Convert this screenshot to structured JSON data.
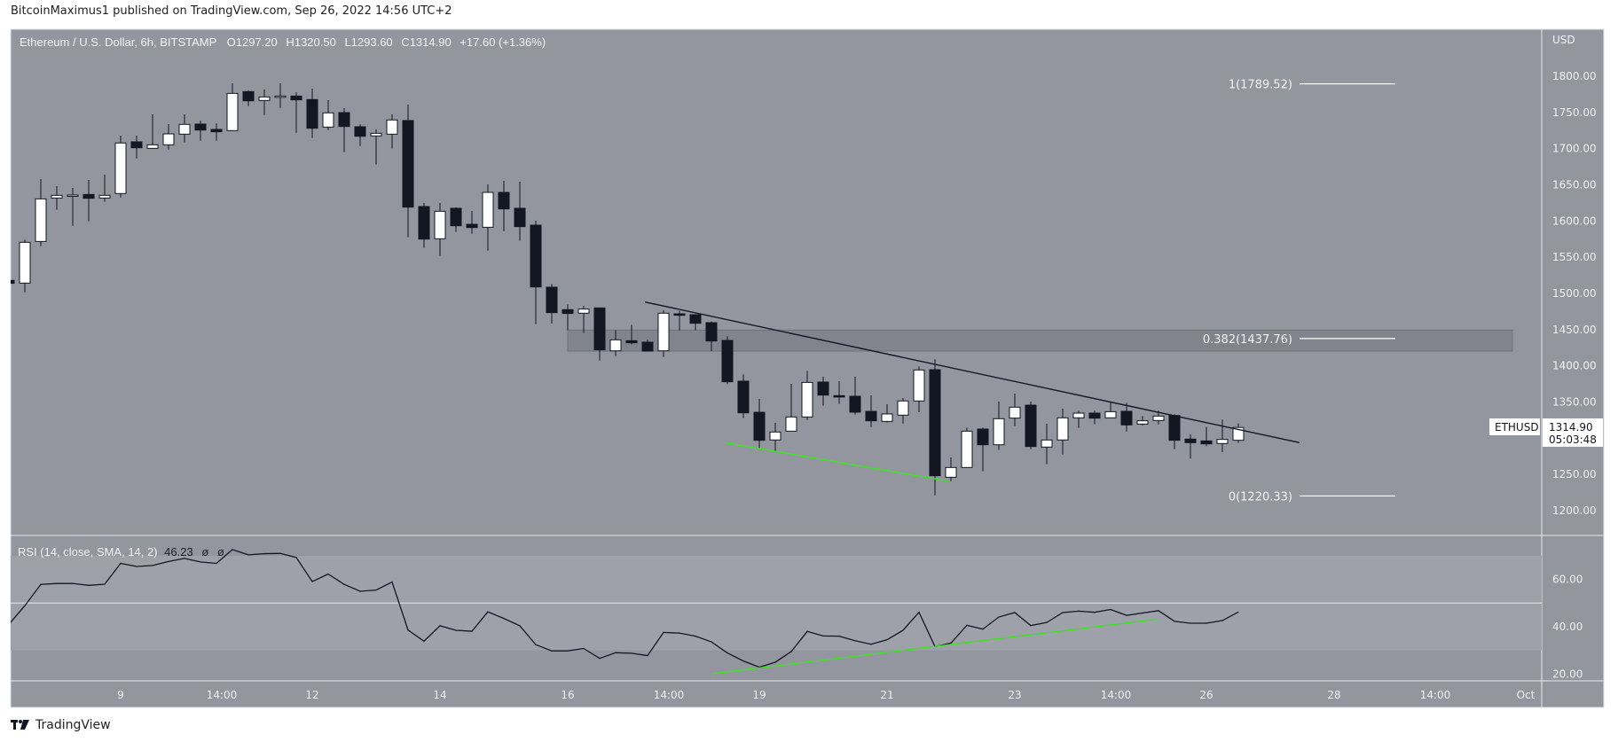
{
  "publish_note": "BitcoinMaximus1 published on TradingView.com, Sep 26, 2022 14:56 UTC+2",
  "legend": {
    "symbol": "Ethereum / U.S. Dollar, 6h, BITSTAMP",
    "o_label": "O",
    "o": "1297.20",
    "h_label": "H",
    "h": "1320.50",
    "l_label": "L",
    "l": "1293.60",
    "c_label": "C",
    "c": "1314.90",
    "change": "+17.60 (+1.36%)"
  },
  "price_axis": {
    "currency": "USD",
    "ticks": [
      "1800.00",
      "1750.00",
      "1700.00",
      "1650.00",
      "1600.00",
      "1550.00",
      "1500.00",
      "1450.00",
      "1400.00",
      "1350.00",
      "1250.00",
      "1200.00"
    ]
  },
  "last_price": {
    "symbol": "ETHUSD",
    "price": "1314.90",
    "countdown": "05:03:48"
  },
  "rsi": {
    "legend": "RSI (14, close, SMA, 14, 2)",
    "value": "46.23",
    "na1": "ø",
    "na2": "ø",
    "ticks": [
      "60.00",
      "40.00",
      "20.00"
    ]
  },
  "time_axis": [
    {
      "label": "9",
      "t": "2022-09-09 00:00"
    },
    {
      "label": "14:00",
      "t": "2022-09-10 14:00"
    },
    {
      "label": "12",
      "t": "2022-09-12 00:00"
    },
    {
      "label": "14",
      "t": "2022-09-14 00:00"
    },
    {
      "label": "16",
      "t": "2022-09-16 00:00"
    },
    {
      "label": "14:00",
      "t": "2022-09-17 14:00"
    },
    {
      "label": "19",
      "t": "2022-09-19 00:00"
    },
    {
      "label": "21",
      "t": "2022-09-21 00:00"
    },
    {
      "label": "23",
      "t": "2022-09-23 00:00"
    },
    {
      "label": "14:00",
      "t": "2022-09-24 14:00"
    },
    {
      "label": "26",
      "t": "2022-09-26 00:00"
    },
    {
      "label": "28",
      "t": "2022-09-28 00:00"
    },
    {
      "label": "14:00",
      "t": "2022-09-29 14:00"
    },
    {
      "label": "Oct",
      "t": "2022-10-01 00:00"
    }
  ],
  "branding": "TradingView",
  "colors": {
    "background": "#93969f",
    "band": "#9ea1aa",
    "up": "#ffffff",
    "down": "#131722",
    "trendline": "#131722",
    "support": "#39e61a",
    "zone": "#7f828b",
    "axis_text": "#f2f3f5"
  },
  "chart_data": [
    {
      "type": "candlestick",
      "title": "Ethereum / U.S. Dollar, 6h, BITSTAMP",
      "ylabel": "USD",
      "ylim": [
        1170,
        1860
      ],
      "grid": false,
      "fields": [
        "t",
        "open",
        "high",
        "low",
        "close"
      ],
      "candles": [
        [
          "2022-09-07 06:00",
          1518,
          1521,
          1512,
          1514
        ],
        [
          "2022-09-07 12:00",
          1514.3,
          1574.3,
          1501.6,
          1570.6
        ],
        [
          "2022-09-07 18:00",
          1571.8,
          1658,
          1565.3,
          1630.6
        ],
        [
          "2022-09-08 00:00",
          1631.8,
          1648.2,
          1615.5,
          1635.5
        ],
        [
          "2022-09-08 06:00",
          1635,
          1645.7,
          1593.5,
          1636
        ],
        [
          "2022-09-08 12:00",
          1636.7,
          1656.7,
          1599.6,
          1631.4
        ],
        [
          "2022-09-08 18:00",
          1631.8,
          1664,
          1626.5,
          1635.5
        ],
        [
          "2022-09-09 00:00",
          1638,
          1718,
          1632.7,
          1707.8
        ],
        [
          "2022-09-09 06:00",
          1709.4,
          1718,
          1686.5,
          1701.2
        ],
        [
          "2022-09-09 12:00",
          1700.4,
          1747.4,
          1700,
          1705.3
        ],
        [
          "2022-09-09 18:00",
          1705.3,
          1733.9,
          1698.8,
          1720.4
        ],
        [
          "2022-09-10 00:00",
          1720,
          1747.4,
          1708.6,
          1733.5
        ],
        [
          "2022-09-10 06:00",
          1733.9,
          1738.8,
          1711,
          1725.7
        ],
        [
          "2022-09-10 12:00",
          1726.5,
          1735,
          1711,
          1723.3
        ],
        [
          "2022-09-10 18:00",
          1724.9,
          1790.2,
          1724.9,
          1776.3
        ],
        [
          "2022-09-11 00:00",
          1778.8,
          1780.4,
          1758.8,
          1766.1
        ],
        [
          "2022-09-11 06:00",
          1766.5,
          1781.6,
          1746.5,
          1771.4
        ],
        [
          "2022-09-11 12:00",
          1772.6,
          1790.2,
          1756.3,
          1772.7
        ],
        [
          "2022-09-11 18:00",
          1772.6,
          1778,
          1722,
          1767.4
        ],
        [
          "2022-09-12 00:00",
          1767.8,
          1782.9,
          1714.7,
          1728.2
        ],
        [
          "2022-09-12 06:00",
          1729.8,
          1766.9,
          1725.7,
          1749.4
        ],
        [
          "2022-09-12 12:00",
          1749.8,
          1755.9,
          1695.1,
          1730.6
        ],
        [
          "2022-09-12 18:00",
          1730.2,
          1733.5,
          1703.7,
          1717.1
        ],
        [
          "2022-09-13 00:00",
          1717.6,
          1726.5,
          1678,
          1721.2
        ],
        [
          "2022-09-13 06:00",
          1720,
          1747.4,
          1700,
          1739.6
        ],
        [
          "2022-09-13 12:00",
          1738.8,
          1760.8,
          1577.6,
          1619.2
        ],
        [
          "2022-09-13 18:00",
          1620,
          1624.9,
          1562.9,
          1575.1
        ],
        [
          "2022-09-14 00:00",
          1575.5,
          1624.9,
          1551.9,
          1613.5
        ],
        [
          "2022-09-14 06:00",
          1617.6,
          1618.8,
          1585,
          1593.5
        ],
        [
          "2022-09-14 12:00",
          1595.5,
          1613.9,
          1582.5,
          1591
        ],
        [
          "2022-09-14 18:00",
          1591.4,
          1650.6,
          1559.2,
          1639.6
        ],
        [
          "2022-09-15 00:00",
          1639.6,
          1655.5,
          1586.1,
          1616.8
        ],
        [
          "2022-09-15 06:00",
          1617.6,
          1654.3,
          1572.7,
          1592.3
        ],
        [
          "2022-09-15 12:00",
          1594.3,
          1600.4,
          1457.6,
          1509
        ],
        [
          "2022-09-15 18:00",
          1508.6,
          1513,
          1458.4,
          1473.5
        ],
        [
          "2022-09-16 00:00",
          1477.6,
          1484.9,
          1449.4,
          1472.3
        ],
        [
          "2022-09-16 06:00",
          1472.7,
          1482.9,
          1445.3,
          1478.4
        ],
        [
          "2022-09-16 12:00",
          1480,
          1480,
          1407.4,
          1422.1
        ],
        [
          "2022-09-16 18:00",
          1420.8,
          1449.4,
          1413.5,
          1435.9
        ],
        [
          "2022-09-17 00:00",
          1434.7,
          1456.7,
          1429.8,
          1431.9
        ],
        [
          "2022-09-17 06:00",
          1432.7,
          1436,
          1419.6,
          1420.4
        ],
        [
          "2022-09-17 12:00",
          1420.8,
          1476.8,
          1412.3,
          1472.7
        ],
        [
          "2022-09-17 18:00",
          1471.8,
          1476,
          1449,
          1469.8
        ],
        [
          "2022-09-18 00:00",
          1470.6,
          1470.6,
          1449,
          1458.8
        ],
        [
          "2022-09-18 06:00",
          1459.6,
          1461.2,
          1420.4,
          1434.3
        ],
        [
          "2022-09-18 12:00",
          1435.1,
          1440.8,
          1374.7,
          1378
        ],
        [
          "2022-09-18 18:00",
          1378.8,
          1388.2,
          1327.8,
          1335.1
        ],
        [
          "2022-09-19 00:00",
          1335.9,
          1354.3,
          1285.7,
          1297.2
        ],
        [
          "2022-09-19 06:00",
          1297.6,
          1321.2,
          1282.5,
          1308.6
        ],
        [
          "2022-09-19 12:00",
          1309.8,
          1375.1,
          1309.8,
          1329.4
        ],
        [
          "2022-09-19 18:00",
          1329.4,
          1393.1,
          1325.3,
          1377.1
        ],
        [
          "2022-09-20 00:00",
          1377.6,
          1385,
          1344.9,
          1359.6
        ],
        [
          "2022-09-20 06:00",
          1358.8,
          1378.8,
          1347.4,
          1357.8
        ],
        [
          "2022-09-20 12:00",
          1358,
          1385,
          1332.7,
          1336
        ],
        [
          "2022-09-20 18:00",
          1337.1,
          1359.2,
          1315.5,
          1324.1
        ],
        [
          "2022-09-21 00:00",
          1323.3,
          1347,
          1321.6,
          1333.5
        ],
        [
          "2022-09-21 06:00",
          1331.9,
          1355.5,
          1320.4,
          1351.5
        ],
        [
          "2022-09-21 12:00",
          1351.5,
          1399.2,
          1336,
          1394.3
        ],
        [
          "2022-09-21 18:00",
          1394.7,
          1409,
          1221.2,
          1248.2
        ],
        [
          "2022-09-22 00:00",
          1246.1,
          1273.5,
          1240.8,
          1259.6
        ],
        [
          "2022-09-22 06:00",
          1259.6,
          1314.7,
          1259.6,
          1309.8
        ],
        [
          "2022-09-22 12:00",
          1312.7,
          1314.7,
          1254.3,
          1291
        ],
        [
          "2022-09-22 18:00",
          1291,
          1350.6,
          1283.7,
          1327
        ],
        [
          "2022-09-23 00:00",
          1327.8,
          1361.6,
          1316.8,
          1342.9
        ],
        [
          "2022-09-23 06:00",
          1345.7,
          1350.6,
          1285,
          1288.6
        ],
        [
          "2022-09-23 12:00",
          1287.8,
          1320,
          1264.1,
          1297.6
        ],
        [
          "2022-09-23 18:00",
          1297.6,
          1340.8,
          1277.6,
          1328.2
        ],
        [
          "2022-09-24 00:00",
          1328.2,
          1338,
          1314.3,
          1334.7
        ],
        [
          "2022-09-24 06:00",
          1334.7,
          1338,
          1319.6,
          1327.8
        ],
        [
          "2022-09-24 12:00",
          1328.2,
          1350.2,
          1328.2,
          1336.7
        ],
        [
          "2022-09-24 18:00",
          1337.2,
          1349,
          1309.4,
          1318.4
        ],
        [
          "2022-09-25 00:00",
          1319.6,
          1330.6,
          1317.6,
          1324.1
        ],
        [
          "2022-09-25 06:00",
          1324.5,
          1338,
          1319.2,
          1330.6
        ],
        [
          "2022-09-25 12:00",
          1331.4,
          1333,
          1285,
          1297.2
        ],
        [
          "2022-09-25 18:00",
          1298.8,
          1305.3,
          1271.8,
          1293.9
        ],
        [
          "2022-09-26 00:00",
          1296.3,
          1315.5,
          1289,
          1292.3
        ],
        [
          "2022-09-26 06:00",
          1292.7,
          1325.7,
          1280.8,
          1298.4
        ],
        [
          "2022-09-26 12:00",
          1297.2,
          1320.5,
          1293.6,
          1314.9
        ]
      ],
      "fib_levels": [
        {
          "label": "1(1789.52)",
          "price": 1789.52
        },
        {
          "label": "0.382(1437.76)",
          "price": 1437.76
        },
        {
          "label": "0(1220.33)",
          "price": 1220.33
        }
      ],
      "fib_span": {
        "from": "2022-09-27 11:00",
        "to": "2022-09-28 23:00"
      },
      "zone": {
        "from": "2022-09-16 00:00",
        "to": "2022-09-30 19:00",
        "top": 1449.4,
        "bottom": 1420.4
      },
      "trendlines": [
        {
          "kind": "resistance",
          "color": "#131722",
          "from": [
            "2022-09-17 05:00",
            1488.2
          ],
          "to": [
            "2022-09-27 11:00",
            1293.9
          ]
        },
        {
          "kind": "support",
          "color": "#39e61a",
          "from": [
            "2022-09-18 11:00",
            1293.9
          ],
          "to": [
            "2022-09-21 23:00",
            1240.8
          ]
        }
      ]
    },
    {
      "type": "line",
      "title": "RSI (14, close, SMA, 14, 2)",
      "ylim": [
        15,
        78
      ],
      "bands": {
        "upper": 70,
        "middle": 50,
        "lower": 30
      },
      "t_start": "2022-09-07 06:00",
      "values": [
        41,
        48.9,
        57.9,
        58.3,
        58.3,
        57.5,
        58,
        66.8,
        65.5,
        65.9,
        67.6,
        68.9,
        67.4,
        66.8,
        72.6,
        70.4,
        70.9,
        71,
        69.3,
        59.1,
        62.3,
        57.9,
        55,
        55.5,
        58.9,
        38.6,
        33.9,
        40.4,
        38.5,
        38.1,
        46.3,
        43.5,
        40.4,
        32.4,
        29.8,
        29.8,
        30.8,
        26.6,
        29,
        28.8,
        27.8,
        37.6,
        37.3,
        36,
        33.6,
        28.9,
        25.5,
        22.9,
        25,
        29.5,
        38,
        36.1,
        36,
        34.1,
        32.6,
        34.5,
        38.5,
        46.1,
        31.6,
        33.1,
        40.6,
        39,
        44.1,
        46,
        40.5,
        41.8,
        46,
        46.6,
        46.1,
        47.3,
        44.8,
        45.8,
        46.8,
        42.3,
        41.5,
        41.5,
        42.6,
        46.2
      ],
      "trendlines": [
        {
          "kind": "support",
          "color": "#39e61a",
          "from": [
            "2022-09-18 06:00",
            20.1
          ],
          "to": [
            "2022-09-25 05:00",
            43.1
          ]
        }
      ]
    }
  ]
}
